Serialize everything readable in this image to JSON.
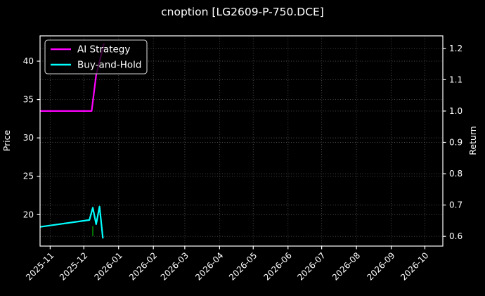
{
  "chart_data": {
    "type": "line",
    "title": "cnoption [LG2609-P-750.DCE]",
    "grid": "dotted, both y-axes and monthly x ticks",
    "legend_position": "upper left",
    "background_color": "#000000",
    "foreground_color": "#ffffff",
    "grid_color": "#4f4f4f",
    "x_axis": {
      "type": "date",
      "range": [
        "2025-10-23",
        "2026-10-17"
      ],
      "tick_labels": [
        "2025-11",
        "2025-12",
        "2026-01",
        "2026-02",
        "2026-03",
        "2026-04",
        "2026-05",
        "2026-06",
        "2026-07",
        "2026-08",
        "2026-09",
        "2026-10"
      ],
      "tick_dates": [
        "2025-11-01",
        "2025-12-01",
        "2026-01-01",
        "2026-02-01",
        "2026-03-01",
        "2026-04-01",
        "2026-05-01",
        "2026-06-01",
        "2026-07-01",
        "2026-08-01",
        "2026-09-01",
        "2026-10-01"
      ],
      "tick_rotation_deg": 45
    },
    "y_left": {
      "label": "Price",
      "ticks": [
        20,
        25,
        30,
        35,
        40
      ],
      "range": [
        15.9,
        43.3
      ]
    },
    "y_right": {
      "label": "Return",
      "ticks": [
        0.6,
        0.7,
        0.8,
        0.9,
        1.0,
        1.1,
        1.2
      ],
      "range": [
        0.569,
        1.24
      ]
    },
    "series": [
      {
        "name": "AI Strategy",
        "color": "#ff00ff",
        "axis": "right",
        "line_width": 2.2,
        "points": [
          [
            "2025-10-23",
            1.0
          ],
          [
            "2025-12-08",
            1.0
          ],
          [
            "2025-12-12",
            1.115
          ],
          [
            "2025-12-19",
            1.216
          ]
        ]
      },
      {
        "name": "Buy-and-Hold",
        "color": "#00ffff",
        "axis": "left",
        "line_width": 2.2,
        "points": [
          [
            "2025-10-23",
            18.4
          ],
          [
            "2025-12-06",
            19.3
          ],
          [
            "2025-12-09",
            20.9
          ],
          [
            "2025-12-12",
            18.75
          ],
          [
            "2025-12-15",
            21.05
          ],
          [
            "2025-12-18",
            16.9
          ]
        ]
      }
    ],
    "markers": [
      {
        "name": "buy-marker",
        "shape": "vertical-segment",
        "color": "#007f00",
        "line_width": 1.8,
        "axis": "left",
        "date": "2025-12-09",
        "from": 18.5,
        "to": 17.2
      }
    ],
    "legend": {
      "items": [
        {
          "label": "AI Strategy",
          "color": "#ff00ff"
        },
        {
          "label": "Buy-and-Hold",
          "color": "#00ffff"
        }
      ]
    }
  }
}
